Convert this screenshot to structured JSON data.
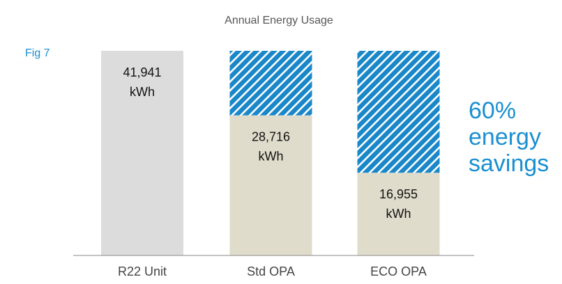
{
  "chart_data": {
    "type": "bar",
    "title": "Annual Energy Usage",
    "figure_label": "Fig 7",
    "categories": [
      "R22 Unit",
      "Std OPA",
      "ECO OPA"
    ],
    "unit": "kWh",
    "series": [
      {
        "colors": [
          "#dcdcdc",
          "#e0dccb",
          "#e0dccb"
        ],
        "values": [
          41941,
          28716,
          16955
        ],
        "value_labels": [
          "41,941",
          "28,716",
          "16,955"
        ]
      },
      {
        "color": "#1a87c9",
        "pattern": "hatch",
        "values": [
          null,
          13225,
          24986
        ]
      }
    ],
    "ylim": [
      0,
      41941
    ],
    "annotation": [
      "60%",
      "energy",
      "savings"
    ],
    "annotation_color": "#1a8fd0"
  }
}
